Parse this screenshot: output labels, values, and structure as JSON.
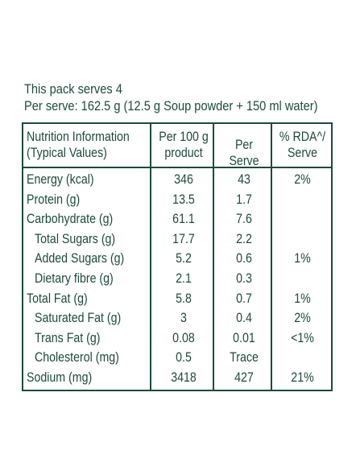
{
  "intro": {
    "serves": "This pack serves 4",
    "per_serve": "Per serve: 162.5 g (12.5 g Soup powder + 150 ml water)"
  },
  "table": {
    "headers": {
      "name": [
        "Nutrition Information",
        "(Typical Values)"
      ],
      "per100": [
        "Per 100 g",
        "product"
      ],
      "perserve": [
        "Per Serve"
      ],
      "rda": [
        "% RDA^/",
        "Serve"
      ]
    },
    "rows": [
      {
        "name": "Energy (kcal)",
        "per100": "346",
        "perserve": "43",
        "rda": "2%",
        "indent": false
      },
      {
        "name": "Protein (g)",
        "per100": "13.5",
        "perserve": "1.7",
        "rda": "",
        "indent": false
      },
      {
        "name": "Carbohydrate (g)",
        "per100": "61.1",
        "perserve": "7.6",
        "rda": "",
        "indent": false
      },
      {
        "name": "Total Sugars (g)",
        "per100": "17.7",
        "perserve": "2.2",
        "rda": "",
        "indent": true
      },
      {
        "name": "Added Sugars (g)",
        "per100": "5.2",
        "perserve": "0.6",
        "rda": "1%",
        "indent": true
      },
      {
        "name": "Dietary fibre (g)",
        "per100": "2.1",
        "perserve": "0.3",
        "rda": "",
        "indent": true
      },
      {
        "name": "Total Fat (g)",
        "per100": "5.8",
        "perserve": "0.7",
        "rda": "1%",
        "indent": false
      },
      {
        "name": "Saturated Fat (g)",
        "per100": "3",
        "perserve": "0.4",
        "rda": "2%",
        "indent": true
      },
      {
        "name": "Trans Fat (g)",
        "per100": "0.08",
        "perserve": "0.01",
        "rda": "<1%",
        "indent": true
      },
      {
        "name": "Cholesterol (mg)",
        "per100": "0.5",
        "perserve": "Trace",
        "rda": "",
        "indent": true
      },
      {
        "name": "Sodium (mg)",
        "per100": "3418",
        "perserve": "427",
        "rda": "21%",
        "indent": false
      }
    ]
  },
  "colors": {
    "ink": "#1d4a3c",
    "background": "#ffffff"
  }
}
